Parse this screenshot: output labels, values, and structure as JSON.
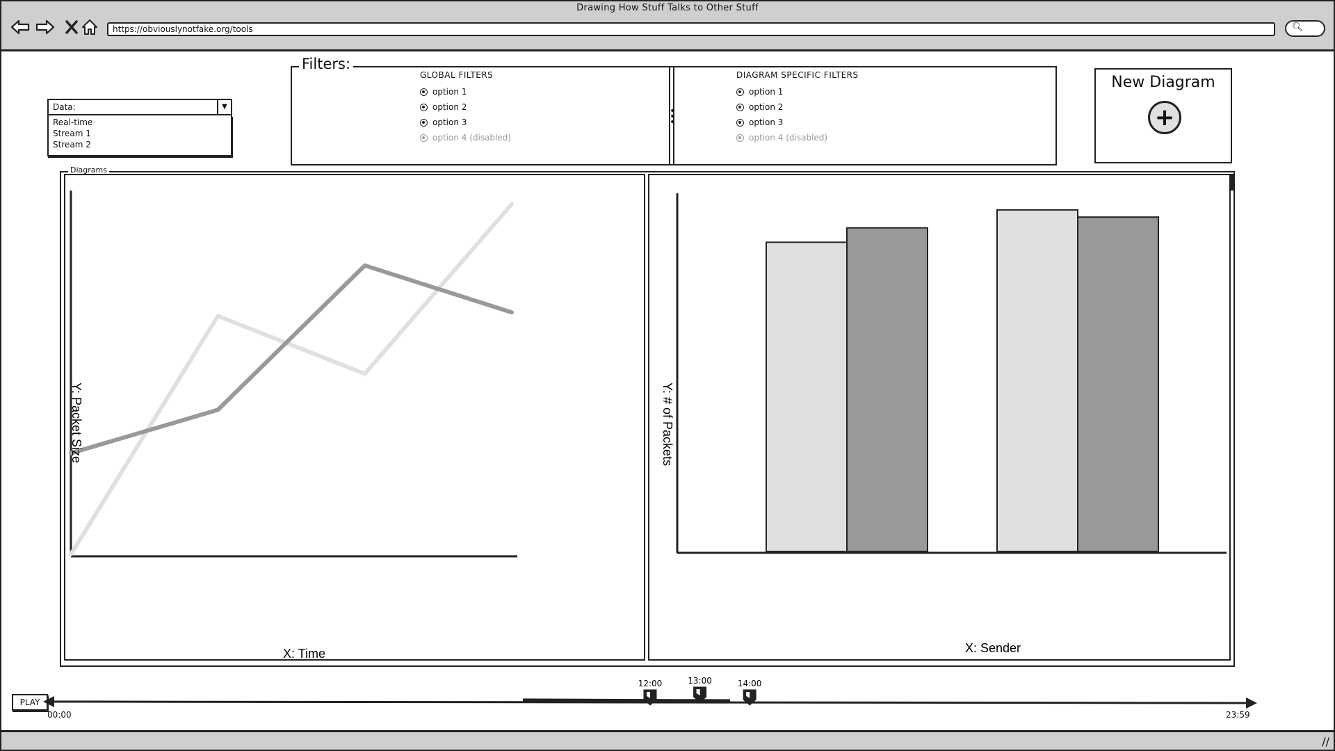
{
  "window": {
    "title": "Drawing How Stuff Talks to Other Stuff"
  },
  "browser": {
    "url": "https://obviouslynotfake.org/tools",
    "nav_icons": [
      "back-arrow-icon",
      "forward-arrow-icon",
      "close-icon",
      "home-icon"
    ]
  },
  "data_select": {
    "label": "Data:",
    "options": [
      "Real-time",
      "Stream 1",
      "Stream 2"
    ]
  },
  "filters": {
    "title": "Filters:",
    "global": {
      "title": "GLOBAL FILTERS",
      "options": [
        {
          "label": "option 1",
          "disabled": false
        },
        {
          "label": "option 2",
          "disabled": false
        },
        {
          "label": "option 3",
          "disabled": false
        },
        {
          "label": "option 4 (disabled)",
          "disabled": true
        }
      ]
    },
    "specific": {
      "title": "DIAGRAM SPECIFIC FILTERS",
      "options": [
        {
          "label": "option 1",
          "disabled": false
        },
        {
          "label": "option 2",
          "disabled": false
        },
        {
          "label": "option 3",
          "disabled": false
        },
        {
          "label": "option 4 (disabled)",
          "disabled": true
        }
      ]
    }
  },
  "new_diagram": {
    "label": "New Diagram"
  },
  "diagrams": {
    "title": "Diagrams"
  },
  "colors": {
    "light_series": "#e0e0e0",
    "dark_series": "#999999",
    "stroke": "#222222"
  },
  "chart_data": [
    {
      "type": "line",
      "xlabel": "X: Time",
      "ylabel": "Y: Packet Size",
      "ylim": [
        0,
        100
      ],
      "x": [
        0,
        1,
        2,
        3
      ],
      "series": [
        {
          "values": [
            0,
            66,
            50,
            97
          ]
        },
        {
          "values": [
            28,
            40,
            80,
            67
          ]
        }
      ]
    },
    {
      "type": "bar",
      "xlabel": "X: Sender",
      "ylabel": "Y: # of Packets",
      "ylim": [
        0,
        100
      ],
      "categories": [
        "",
        ""
      ],
      "series": [
        {
          "values": [
            86,
            95
          ]
        },
        {
          "values": [
            90,
            93
          ]
        }
      ]
    }
  ],
  "timeline": {
    "play_label": "PLAY",
    "start_label": "00:00",
    "end_label": "23:59",
    "markers": [
      {
        "label": "12:00",
        "hour": 12
      },
      {
        "label": "13:00",
        "hour": 13
      },
      {
        "label": "14:00",
        "hour": 14
      }
    ]
  }
}
